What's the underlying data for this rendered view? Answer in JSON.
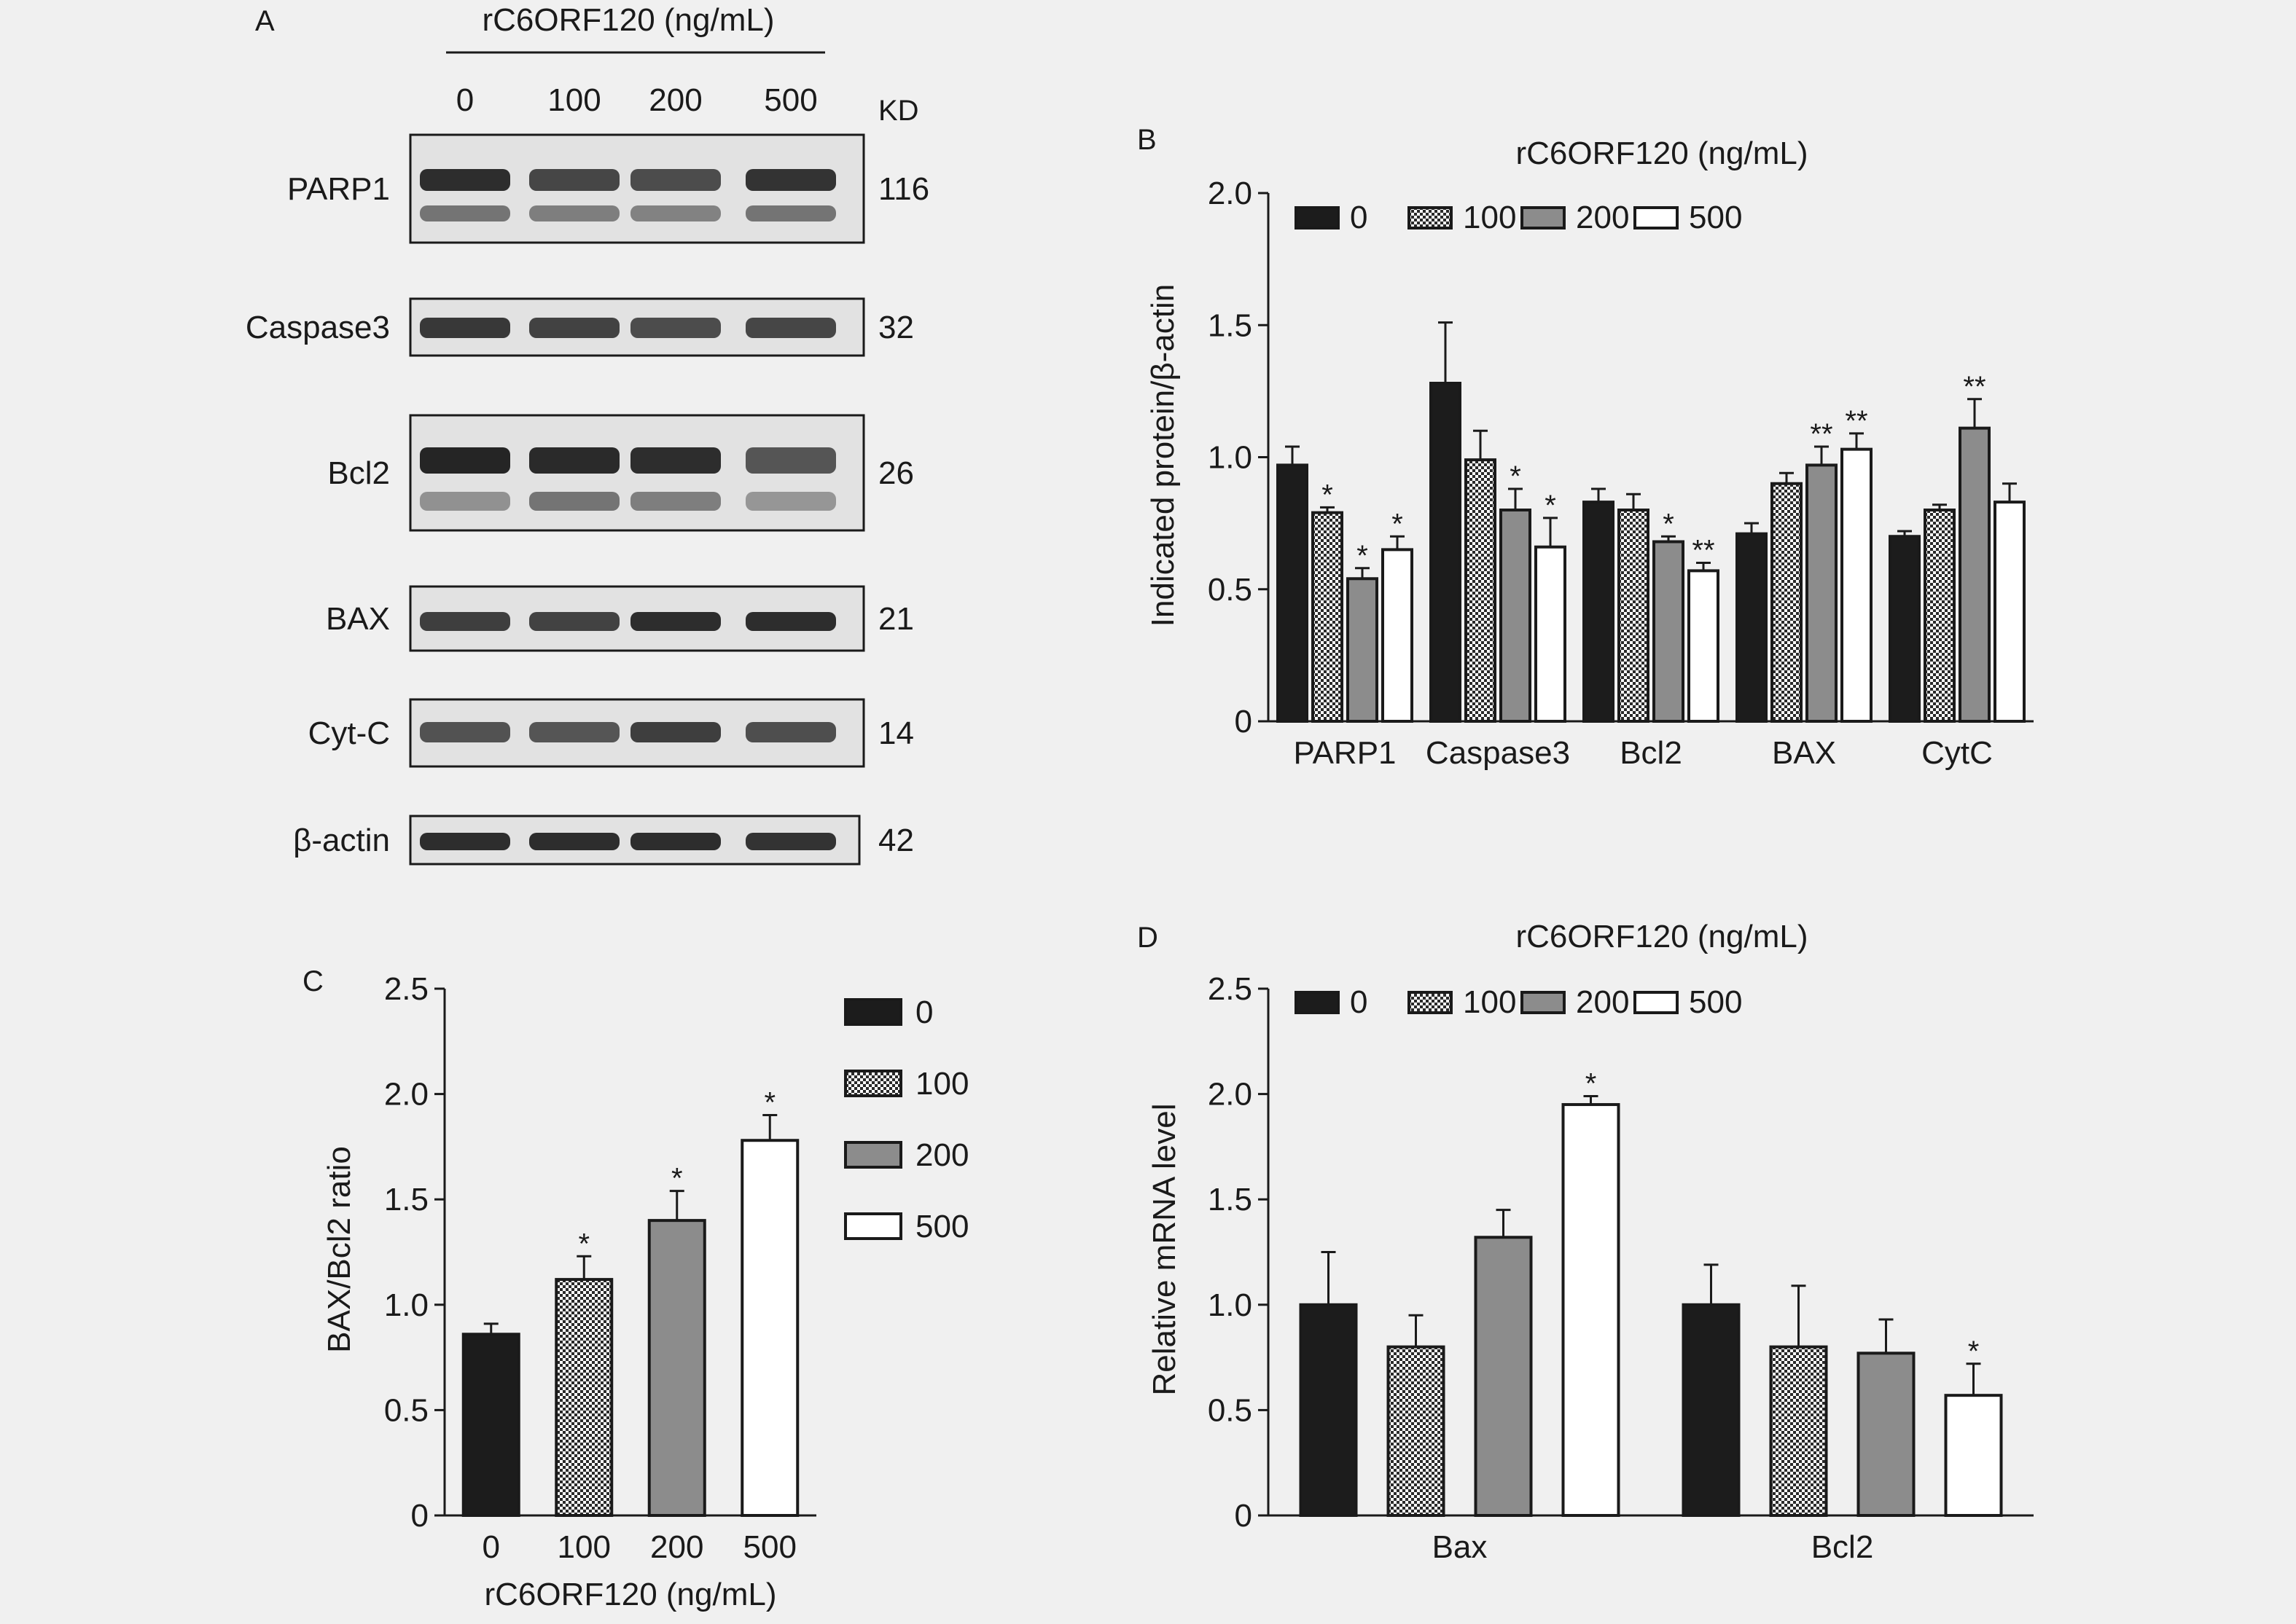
{
  "patterns": {
    "black": "#1c1c1c",
    "check": "checkerboard",
    "gray": "#8c8c8c",
    "white": "#ffffff"
  },
  "panelA": {
    "letter": "A",
    "header": "rC6ORF120 (ng/mL)",
    "lanes": [
      "0",
      "100",
      "200",
      "500"
    ],
    "kd_label": "KD",
    "blots": [
      {
        "name": "PARP1",
        "kd": "116"
      },
      {
        "name": "Caspase3",
        "kd": "32"
      },
      {
        "name": "Bcl2",
        "kd": "26"
      },
      {
        "name": "BAX",
        "kd": "21"
      },
      {
        "name": "Cyt-C",
        "kd": "14"
      },
      {
        "name": "β-actin",
        "kd": "42"
      }
    ]
  },
  "chart_data": [
    {
      "id": "B",
      "letter": "B",
      "type": "bar",
      "title": "rC6ORF120 (ng/mL)",
      "ylabel": "Indicated protein/β-actin",
      "xlabel": "",
      "ylim": [
        0,
        2.0
      ],
      "yticks": [
        "0",
        "0.5",
        "1.0",
        "1.5",
        "2.0"
      ],
      "categories": [
        "PARP1",
        "Caspase3",
        "Bcl2",
        "BAX",
        "CytC"
      ],
      "legend_position": "top",
      "series": [
        {
          "name": "0",
          "fill": "black",
          "values": [
            0.97,
            1.28,
            0.83,
            0.71,
            0.7
          ],
          "errors": [
            0.07,
            0.23,
            0.05,
            0.04,
            0.02
          ],
          "sig": [
            "",
            "",
            "",
            "",
            ""
          ]
        },
        {
          "name": "100",
          "fill": "check",
          "values": [
            0.79,
            0.99,
            0.8,
            0.9,
            0.8
          ],
          "errors": [
            0.02,
            0.11,
            0.06,
            0.04,
            0.02
          ],
          "sig": [
            "*",
            "",
            "",
            "",
            ""
          ]
        },
        {
          "name": "200",
          "fill": "gray",
          "values": [
            0.54,
            0.8,
            0.68,
            0.97,
            1.11
          ],
          "errors": [
            0.04,
            0.08,
            0.02,
            0.07,
            0.11
          ],
          "sig": [
            "*",
            "*",
            "*",
            "**",
            "**"
          ]
        },
        {
          "name": "500",
          "fill": "white",
          "values": [
            0.65,
            0.66,
            0.57,
            1.03,
            0.83
          ],
          "errors": [
            0.05,
            0.11,
            0.03,
            0.06,
            0.07
          ],
          "sig": [
            "*",
            "*",
            "**",
            "**",
            ""
          ]
        }
      ]
    },
    {
      "id": "C",
      "letter": "C",
      "type": "bar",
      "title": "",
      "ylabel": "BAX/Bcl2 ratio",
      "xlabel": "rC6ORF120 (ng/mL)",
      "ylim": [
        0,
        2.5
      ],
      "yticks": [
        "0",
        "0.5",
        "1.0",
        "1.5",
        "2.0",
        "2.5"
      ],
      "categories": [
        "0",
        "100",
        "200",
        "500"
      ],
      "legend_position": "right",
      "bars": [
        {
          "name": "0",
          "fill": "black",
          "value": 0.86,
          "error": 0.05,
          "sig": ""
        },
        {
          "name": "100",
          "fill": "check",
          "value": 1.12,
          "error": 0.11,
          "sig": "*"
        },
        {
          "name": "200",
          "fill": "gray",
          "value": 1.4,
          "error": 0.14,
          "sig": "*"
        },
        {
          "name": "500",
          "fill": "white",
          "value": 1.78,
          "error": 0.12,
          "sig": "*"
        }
      ]
    },
    {
      "id": "D",
      "letter": "D",
      "type": "bar",
      "title": "rC6ORF120 (ng/mL)",
      "ylabel": "Relative mRNA level",
      "xlabel": "",
      "ylim": [
        0,
        2.5
      ],
      "yticks": [
        "0",
        "0.5",
        "1.0",
        "1.5",
        "2.0",
        "2.5"
      ],
      "categories": [
        "Bax",
        "Bcl2"
      ],
      "legend_position": "top",
      "series": [
        {
          "name": "0",
          "fill": "black",
          "values": [
            1.0,
            1.0
          ],
          "errors": [
            0.25,
            0.19
          ],
          "sig": [
            "",
            ""
          ]
        },
        {
          "name": "100",
          "fill": "check",
          "values": [
            0.8,
            0.8
          ],
          "errors": [
            0.15,
            0.29
          ],
          "sig": [
            "",
            ""
          ]
        },
        {
          "name": "200",
          "fill": "gray",
          "values": [
            1.32,
            0.77
          ],
          "errors": [
            0.13,
            0.16
          ],
          "sig": [
            "",
            ""
          ]
        },
        {
          "name": "500",
          "fill": "white",
          "values": [
            1.95,
            0.57
          ],
          "errors": [
            0.04,
            0.15
          ],
          "sig": [
            "*",
            "*"
          ]
        }
      ]
    }
  ]
}
